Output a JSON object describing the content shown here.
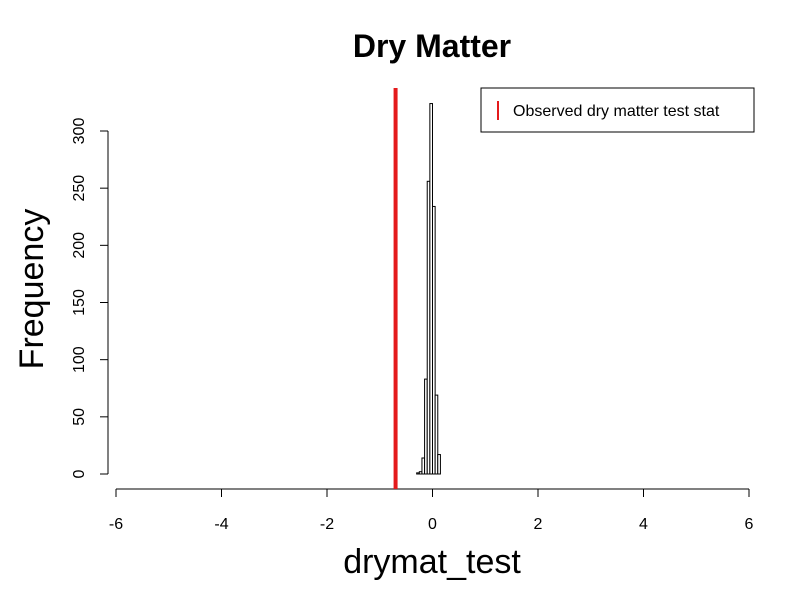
{
  "chart_data": {
    "type": "bar",
    "title": "Dry Matter",
    "xlabel": "drymat_test",
    "ylabel": "Frequency",
    "xlim": [
      -6,
      6
    ],
    "ylim": [
      0,
      300
    ],
    "x_ticks": [
      "-6",
      "-4",
      "-2",
      "0",
      "2",
      "4",
      "6"
    ],
    "x_tick_values": [
      -6,
      -4,
      -2,
      0,
      2,
      4,
      6
    ],
    "y_ticks": [
      "0",
      "50",
      "100",
      "150",
      "200",
      "250",
      "300"
    ],
    "y_tick_values": [
      0,
      50,
      100,
      150,
      200,
      250,
      300
    ],
    "bin_edges": [
      -0.3,
      -0.25,
      -0.2,
      -0.15,
      -0.1,
      -0.05,
      0,
      0.05,
      0.1,
      0.15
    ],
    "counts": [
      1,
      2,
      14,
      83,
      256,
      324,
      234,
      69,
      17
    ],
    "observed_stat": -0.7,
    "observed_color": "#e41a1c",
    "legend": {
      "label": "Observed dry matter test stat",
      "position": "top-right"
    },
    "grid": false
  }
}
